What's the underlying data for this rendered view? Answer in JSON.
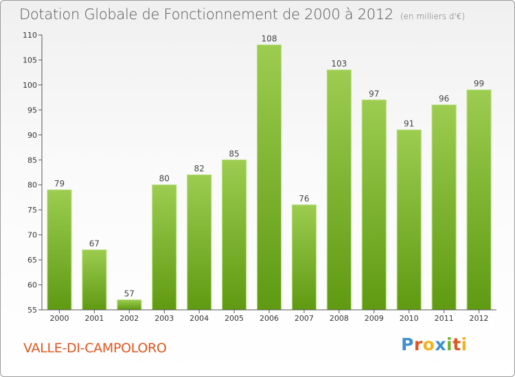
{
  "title": "Dotation Globale de Fonctionnement de 2000 à 2012",
  "unit": "(en milliers d'€)",
  "commune": "VALLE-DI-CAMPOLORO",
  "logo": {
    "letters": [
      "P",
      "r",
      "o",
      "x",
      "i",
      "t",
      "i"
    ]
  },
  "colors": {
    "bar_top": "#9ccc50",
    "bar_bottom": "#5f9a12",
    "commune": "#e0561e",
    "title": "#555555"
  },
  "chart_data": {
    "type": "bar",
    "categories": [
      "2000",
      "2001",
      "2002",
      "2003",
      "2004",
      "2005",
      "2006",
      "2007",
      "2008",
      "2009",
      "2010",
      "2011",
      "2012"
    ],
    "values": [
      79,
      67,
      57,
      80,
      82,
      85,
      108,
      76,
      103,
      97,
      91,
      96,
      99
    ],
    "ylim": [
      55,
      110
    ],
    "yticks": [
      55,
      60,
      65,
      70,
      75,
      80,
      85,
      90,
      95,
      100,
      105,
      110
    ],
    "grid": false,
    "data_labels": true
  }
}
